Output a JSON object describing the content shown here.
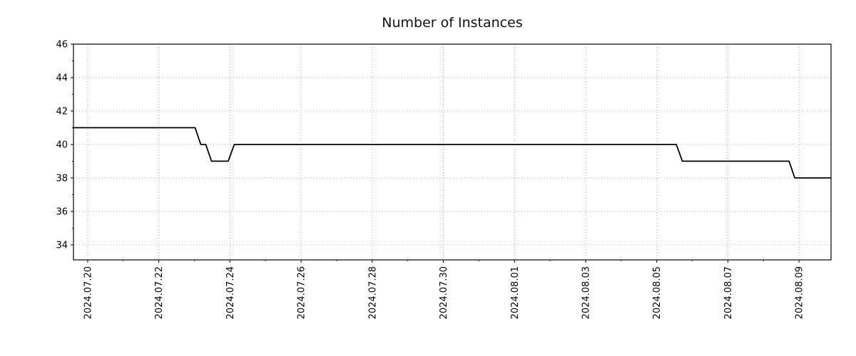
{
  "chart_data": {
    "type": "line",
    "style": "step",
    "title": "Number of Instances",
    "xlabel": "",
    "ylabel": "",
    "grid": true,
    "legend": "none",
    "line_color": "#000000",
    "grid_color": "#aaaaaa",
    "frame_color": "#000000",
    "text_color": "#000000",
    "xlim": [
      -0.4,
      20.9
    ],
    "ylim": [
      33.1,
      46
    ],
    "x_tick_positions": [
      0,
      2,
      4,
      6,
      8,
      10,
      12,
      14,
      16,
      18,
      20
    ],
    "x_tick_labels": [
      "2024.07.20",
      "2024.07.22",
      "2024.07.24",
      "2024.07.26",
      "2024.07.28",
      "2024.07.30",
      "2024.08.01",
      "2024.08.03",
      "2024.08.05",
      "2024.08.07",
      "2024.08.09"
    ],
    "y_ticks": [
      34,
      36,
      38,
      40,
      42,
      44,
      46
    ],
    "series": [
      {
        "name": "instances",
        "points": [
          [
            -0.4,
            41
          ],
          [
            3.02,
            41
          ],
          [
            3.18,
            40
          ],
          [
            3.32,
            40
          ],
          [
            3.48,
            39
          ],
          [
            3.95,
            39
          ],
          [
            4.12,
            40
          ],
          [
            16.55,
            40
          ],
          [
            16.72,
            39
          ],
          [
            19.72,
            39
          ],
          [
            19.88,
            38
          ],
          [
            20.9,
            38
          ]
        ]
      }
    ]
  }
}
